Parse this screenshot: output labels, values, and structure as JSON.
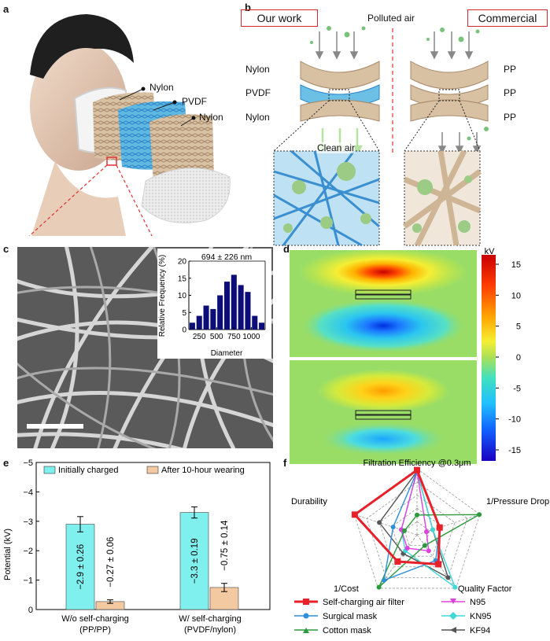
{
  "panel_a": {
    "letter": "a",
    "layers": [
      "Nylon",
      "PVDF",
      "Nylon"
    ]
  },
  "panel_b": {
    "letter": "b",
    "our_work": "Our work",
    "commercial": "Commercial",
    "polluted_air": "Polluted air",
    "clean_air": "Clean air",
    "left_layers": [
      "Nylon",
      "PVDF",
      "Nylon"
    ],
    "right_layers": [
      "PP",
      "PP",
      "PP"
    ]
  },
  "panel_c": {
    "letter": "c",
    "inset": {
      "annotation": "694 ± 226 nm",
      "ylabel": "Relative Frequency (%)",
      "xlabel": "Diameter",
      "xticks": [
        "250",
        "500",
        "750",
        "1000"
      ],
      "yticks": [
        "0",
        "5",
        "10",
        "15",
        "20"
      ]
    }
  },
  "panel_d": {
    "letter": "d",
    "colorbar_unit": "kV",
    "colorbar_ticks": [
      "15",
      "10",
      "5",
      "0",
      "-5",
      "-10",
      "-15"
    ]
  },
  "panel_e": {
    "letter": "e",
    "ylabel": "Potential (kV)",
    "yticks": [
      "−5",
      "−4",
      "−3",
      "−2",
      "−1",
      "0"
    ],
    "legend": [
      "Initially charged",
      "After 10-hour wearing"
    ],
    "groups": [
      {
        "line1": "W/o self-charging",
        "line2": "(PP/PP)"
      },
      {
        "line1": "W/ self-charging",
        "line2": "(PVDF/nylon)"
      }
    ],
    "bar_labels": [
      "−2.9 ± 0.26",
      "−0.27 ± 0.06",
      "−3.3 ± 0.19",
      "−0.75 ± 0.14"
    ]
  },
  "panel_f": {
    "letter": "f",
    "axes": [
      "Filtration Efficiency @0.3μm",
      "1/Pressure Drop",
      "Quality Factor",
      "1/Cost",
      "Durability"
    ],
    "legend": [
      "Self-charging air filter",
      "N95",
      "Surgical mask",
      "KN95",
      "Cotton mask",
      "KF94"
    ]
  },
  "chart_data": [
    {
      "type": "bar",
      "name": "fiber-diameter-histogram",
      "xlabel": "Diameter",
      "ylabel": "Relative Frequency (%)",
      "annotation": "694 ± 226 nm",
      "x": [
        150,
        250,
        350,
        450,
        550,
        650,
        750,
        850,
        950,
        1050,
        1150
      ],
      "values": [
        2,
        4,
        7,
        6,
        10,
        14,
        16,
        13,
        11,
        4,
        2
      ],
      "xlim": [
        100,
        1200
      ],
      "ylim": [
        0,
        20
      ]
    },
    {
      "type": "bar",
      "name": "surface-potential",
      "ylabel": "Potential (kV)",
      "categories": [
        "W/o self-charging (PP/PP)",
        "W/ self-charging (PVDF/nylon)"
      ],
      "series": [
        {
          "name": "Initially charged",
          "values": [
            -2.9,
            -3.3
          ],
          "errors": [
            0.26,
            0.19
          ],
          "color": "#7ff0ee"
        },
        {
          "name": "After 10-hour wearing",
          "values": [
            -0.27,
            -0.75
          ],
          "errors": [
            0.06,
            0.14
          ],
          "color": "#f2c9a0"
        }
      ],
      "ylim": [
        0,
        -5
      ],
      "legend_position": "top"
    },
    {
      "type": "radar",
      "name": "performance-comparison",
      "axes": [
        "Filtration Efficiency @0.3μm",
        "1/Pressure Drop",
        "Quality Factor",
        "1/Cost",
        "Durability"
      ],
      "rings": 5,
      "series": [
        {
          "name": "Self-charging air filter",
          "color": "#e8202a",
          "values": [
            0.98,
            0.36,
            0.55,
            0.5,
            0.99
          ]
        },
        {
          "name": "Surgical mask",
          "color": "#2f8fd8",
          "values": [
            0.96,
            0.36,
            0.48,
            0.85,
            0.38
          ]
        },
        {
          "name": "Cotton mask",
          "color": "#2a9a3c",
          "values": [
            0.3,
            0.99,
            0.2,
            0.98,
            0.2
          ]
        },
        {
          "name": "N95",
          "color": "#e040e0",
          "values": [
            0.96,
            0.15,
            0.3,
            0.25,
            0.25
          ]
        },
        {
          "name": "KN95",
          "color": "#3fd8d8",
          "values": [
            0.96,
            0.25,
            0.98,
            0.3,
            0.25
          ]
        },
        {
          "name": "KF94",
          "color": "#555555",
          "values": [
            0.96,
            0.25,
            0.8,
            0.35,
            0.6
          ]
        }
      ]
    }
  ]
}
